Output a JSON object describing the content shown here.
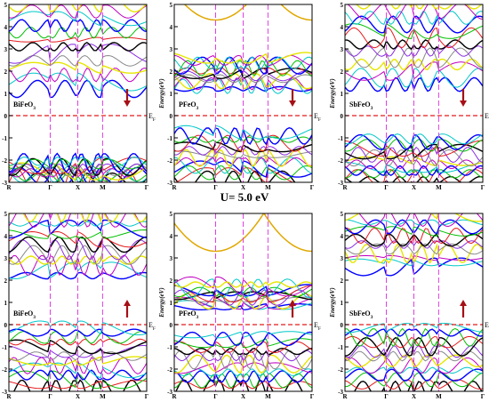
{
  "title": "U= 5.0 eV",
  "ylabel": "Energy(eV)",
  "fermi_label": "E",
  "fermi_sub": "F",
  "k_labels": [
    "R",
    "Γ",
    "X",
    "M",
    "Γ"
  ],
  "y_ticks": [
    -3,
    -2,
    -1,
    0,
    1,
    2,
    3,
    4,
    5
  ],
  "colors": {
    "fermi": "#e41a1c",
    "kline": "#e040e0",
    "arrow": "#a50f15",
    "palette": [
      "#000000",
      "#e41a1c",
      "#00c000",
      "#0000ff",
      "#00c8c8",
      "#c000c0",
      "#e6e600",
      "#888888",
      "#8a2be2"
    ]
  },
  "chart_data": [
    {
      "type": "line",
      "compound": "BiFeO",
      "subscript": "3",
      "spin": "down",
      "ylim": [
        -3,
        5
      ],
      "k_ticks": [
        0,
        0.3,
        0.5,
        0.68,
        1.0
      ],
      "valence": [
        -3.0,
        -1.9
      ],
      "conduction": [
        1.0,
        5.0
      ],
      "upper_bands": false
    },
    {
      "type": "line",
      "compound": "PFeO",
      "subscript": "3",
      "spin": "down",
      "ylim": [
        -3,
        5
      ],
      "k_ticks": [
        0,
        0.3,
        0.5,
        0.68,
        1.0
      ],
      "valence": [
        -3.0,
        -0.6
      ],
      "conduction": [
        1.0,
        2.6
      ],
      "upper_bands": true
    },
    {
      "type": "line",
      "compound": "SbFeO",
      "subscript": "3",
      "spin": "down",
      "ylim": [
        -3,
        5
      ],
      "k_ticks": [
        0,
        0.3,
        0.5,
        0.68,
        1.0
      ],
      "valence": [
        -3.0,
        -0.9
      ],
      "conduction": [
        1.2,
        5.0
      ],
      "upper_bands": false
    },
    {
      "type": "line",
      "compound": "BiFeO",
      "subscript": "3",
      "spin": "up",
      "ylim": [
        -3,
        5
      ],
      "k_ticks": [
        0,
        0.3,
        0.5,
        0.68,
        1.0
      ],
      "valence": [
        -3.0,
        0.0
      ],
      "conduction": [
        2.0,
        5.0
      ],
      "upper_bands": false
    },
    {
      "type": "line",
      "compound": "PFeO",
      "subscript": "3",
      "spin": "up",
      "ylim": [
        -3,
        5
      ],
      "k_ticks": [
        0,
        0.3,
        0.5,
        0.68,
        1.0
      ],
      "valence": [
        -3.0,
        -0.3
      ],
      "conduction": [
        0.6,
        1.8
      ],
      "upper_bands": true
    },
    {
      "type": "line",
      "compound": "SbFeO",
      "subscript": "3",
      "spin": "up",
      "ylim": [
        -3,
        5
      ],
      "k_ticks": [
        0,
        0.3,
        0.5,
        0.68,
        1.0
      ],
      "valence": [
        -3.0,
        0.0
      ],
      "conduction": [
        2.4,
        5.0
      ],
      "upper_bands": false
    }
  ]
}
